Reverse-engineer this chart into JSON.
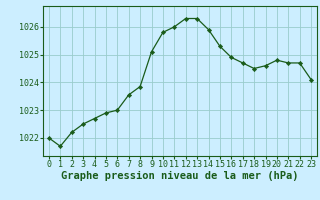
{
  "x": [
    0,
    1,
    2,
    3,
    4,
    5,
    6,
    7,
    8,
    9,
    10,
    11,
    12,
    13,
    14,
    15,
    16,
    17,
    18,
    19,
    20,
    21,
    22,
    23
  ],
  "y": [
    1022.0,
    1021.7,
    1022.2,
    1022.5,
    1022.7,
    1022.9,
    1023.0,
    1023.55,
    1023.85,
    1025.1,
    1025.8,
    1026.0,
    1026.3,
    1026.3,
    1025.9,
    1025.3,
    1024.9,
    1024.7,
    1024.5,
    1024.6,
    1024.8,
    1024.7,
    1024.7,
    1024.1
  ],
  "line_color": "#1a5c1a",
  "marker_color": "#1a5c1a",
  "bg_color": "#cceeff",
  "grid_color": "#99cccc",
  "title": "Graphe pression niveau de la mer (hPa)",
  "ylim": [
    1021.35,
    1026.75
  ],
  "yticks": [
    1022,
    1023,
    1024,
    1025,
    1026
  ],
  "xticks": [
    0,
    1,
    2,
    3,
    4,
    5,
    6,
    7,
    8,
    9,
    10,
    11,
    12,
    13,
    14,
    15,
    16,
    17,
    18,
    19,
    20,
    21,
    22,
    23
  ],
  "tick_fontsize": 6.0,
  "title_fontsize": 7.5,
  "title_fontweight": "bold"
}
